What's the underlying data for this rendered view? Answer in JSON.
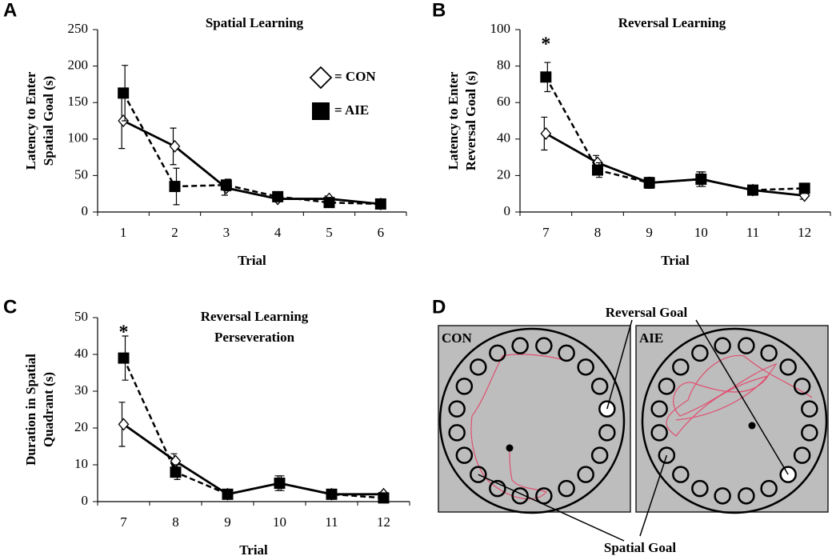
{
  "chart_data": [
    {
      "type": "line",
      "panel": "A",
      "title": "Spatial Learning",
      "ylabel": [
        "Latency to Enter",
        "Spatial Goal (s)"
      ],
      "xlabel": "Trial",
      "categories": [
        "1",
        "2",
        "3",
        "4",
        "5",
        "6"
      ],
      "ylim": [
        0,
        250
      ],
      "yticks": [
        0,
        50,
        100,
        150,
        200,
        250
      ],
      "legend": "upper right",
      "series": [
        {
          "name": "= CON",
          "color": "#000000",
          "marker": "diamond",
          "line": "solid",
          "values": [
            125,
            90,
            33,
            18,
            18,
            11
          ],
          "errors": [
            38,
            25,
            10,
            4,
            4,
            3
          ]
        },
        {
          "name": "= AIE",
          "color": "#000000",
          "marker": "square",
          "line": "dashed",
          "values": [
            163,
            35,
            37,
            21,
            13,
            11
          ],
          "errors": [
            38,
            25,
            8,
            4,
            4,
            3
          ]
        }
      ]
    },
    {
      "type": "line",
      "panel": "B",
      "title": "Reversal Learning",
      "ylabel": [
        "Latency to Enter",
        "Reversal Goal (s)"
      ],
      "xlabel": "Trial",
      "categories": [
        "7",
        "8",
        "9",
        "10",
        "11",
        "12"
      ],
      "ylim": [
        0,
        100
      ],
      "yticks": [
        0,
        20,
        40,
        60,
        80,
        100
      ],
      "annotations": [
        {
          "text": "*",
          "x": "7"
        }
      ],
      "series": [
        {
          "name": "= CON",
          "color": "#000000",
          "marker": "diamond",
          "line": "solid",
          "values": [
            43,
            27,
            16,
            18,
            12,
            9
          ],
          "errors": [
            9,
            4,
            3,
            4,
            2,
            2
          ]
        },
        {
          "name": "= AIE",
          "color": "#000000",
          "marker": "square",
          "line": "dashed",
          "values": [
            74,
            23,
            16,
            18,
            12,
            13
          ],
          "errors": [
            8,
            4,
            3,
            4,
            2,
            2
          ]
        }
      ]
    },
    {
      "type": "line",
      "panel": "C",
      "title": [
        "Reversal Learning",
        "Perseveration"
      ],
      "ylabel": [
        "Duration in Spatial",
        "Quadrant (s)"
      ],
      "xlabel": "Trial",
      "categories": [
        "7",
        "8",
        "9",
        "10",
        "11",
        "12"
      ],
      "ylim": [
        0,
        50
      ],
      "yticks": [
        0,
        10,
        20,
        30,
        40,
        50
      ],
      "annotations": [
        {
          "text": "*",
          "x": "7"
        }
      ],
      "series": [
        {
          "name": "= CON",
          "color": "#000000",
          "marker": "diamond",
          "line": "solid",
          "values": [
            21,
            11,
            2,
            5,
            2,
            2
          ],
          "errors": [
            6,
            2,
            1,
            2,
            0.5,
            0.5
          ]
        },
        {
          "name": "= AIE",
          "color": "#000000",
          "marker": "square",
          "line": "dashed",
          "values": [
            39,
            8,
            2,
            5,
            2,
            1
          ],
          "errors": [
            6,
            2,
            1,
            2,
            0.5,
            0.5
          ]
        }
      ]
    }
  ],
  "diagram": {
    "panel": "D",
    "arenas": [
      "CON",
      "AIE"
    ],
    "reversal_goal": "Reversal Goal",
    "spatial_goal": "Spatial Goal"
  }
}
